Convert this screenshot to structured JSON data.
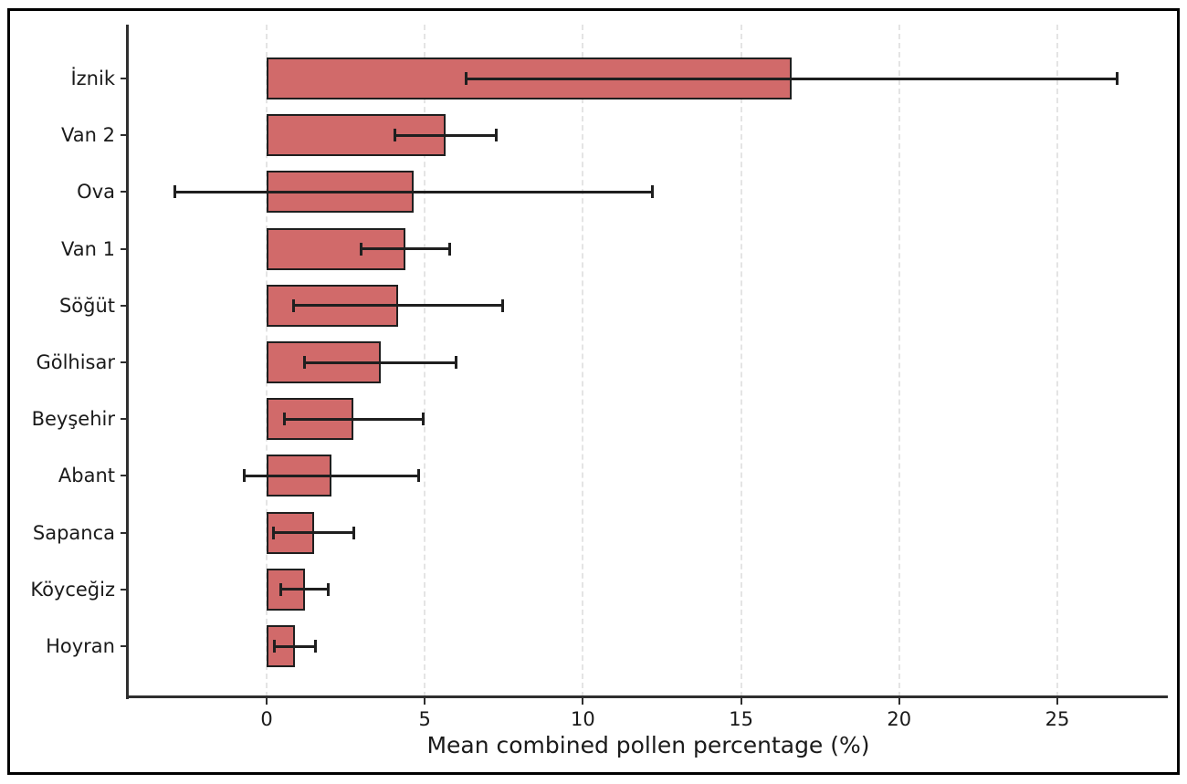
{
  "chart_data": {
    "type": "bar",
    "orientation": "horizontal",
    "xlabel": "Mean combined pollen percentage (%)",
    "ylabel": "",
    "title": "",
    "categories": [
      "İznik",
      "Van 2",
      "Ova",
      "Van 1",
      "Söğüt",
      "Gölhisar",
      "Beyşehir",
      "Abant",
      "Sapanca",
      "Köyceğiz",
      "Hoyran"
    ],
    "values": [
      16.6,
      5.65,
      4.65,
      4.4,
      4.15,
      3.6,
      2.75,
      2.05,
      1.5,
      1.2,
      0.9
    ],
    "errors": [
      10.3,
      1.6,
      7.55,
      1.4,
      3.3,
      2.4,
      2.2,
      2.75,
      1.27,
      0.75,
      0.65
    ],
    "x_ticks": [
      0,
      5,
      10,
      15,
      20,
      25
    ],
    "xlim": [
      -4.4,
      28.5
    ],
    "grid": "vertical-dashed",
    "legend": "none",
    "colors": {
      "bar_fill": "#d16a6a",
      "bar_edge": "#1f1f1f",
      "error_bar": "#1f1f1f",
      "gridline": "#e4e4e4",
      "spine": "#2f2f2f",
      "tick_text": "#1a1a1a",
      "figure_border": "#000000",
      "background": "#ffffff"
    }
  }
}
